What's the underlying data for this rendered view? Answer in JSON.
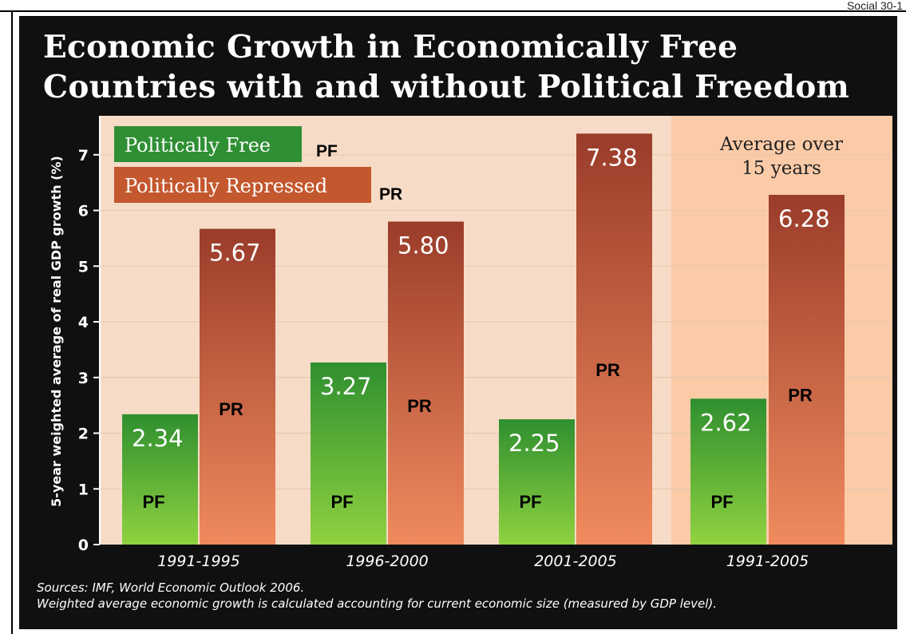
{
  "corner_text": "Social 30-1",
  "chart_data": {
    "type": "bar",
    "title_lines": [
      "Economic Growth in Economically Free",
      "Countries with and without Political Freedom"
    ],
    "ylabel": "5-year weighted average of real GDP growth (%)",
    "ylim": [
      0,
      7.7
    ],
    "yticks": [
      0,
      1,
      2,
      3,
      4,
      5,
      6,
      7
    ],
    "categories": [
      "1991-1995",
      "1996-2000",
      "2001-2005",
      "1991-2005"
    ],
    "series": [
      {
        "name": "Politically Free",
        "abbrev": "PF",
        "values": [
          2.34,
          3.27,
          2.25,
          2.62
        ],
        "value_labels": [
          "2.34",
          "3.27",
          "2.25",
          "2.62"
        ],
        "color_top": "#2f8f2f",
        "color_bottom": "#8fd240"
      },
      {
        "name": "Politically Repressed",
        "abbrev": "PR",
        "values": [
          5.67,
          5.8,
          7.38,
          6.28
        ],
        "value_labels": [
          "5.67",
          "5.80",
          "7.38",
          "6.28"
        ],
        "color_top": "#9a3c2a",
        "color_bottom": "#f08a5e"
      }
    ],
    "highlight": {
      "category": "1991-2005",
      "lines": [
        "Average over",
        "15 years"
      ],
      "color": "#fbcba8"
    },
    "plot_background": "#f6dcc7",
    "legend_placement": "top-left",
    "sources": [
      "Sources: IMF, World Economic Outlook 2006.",
      "Weighted average economic growth is calculated accounting for current economic size (measured by GDP level)."
    ]
  }
}
